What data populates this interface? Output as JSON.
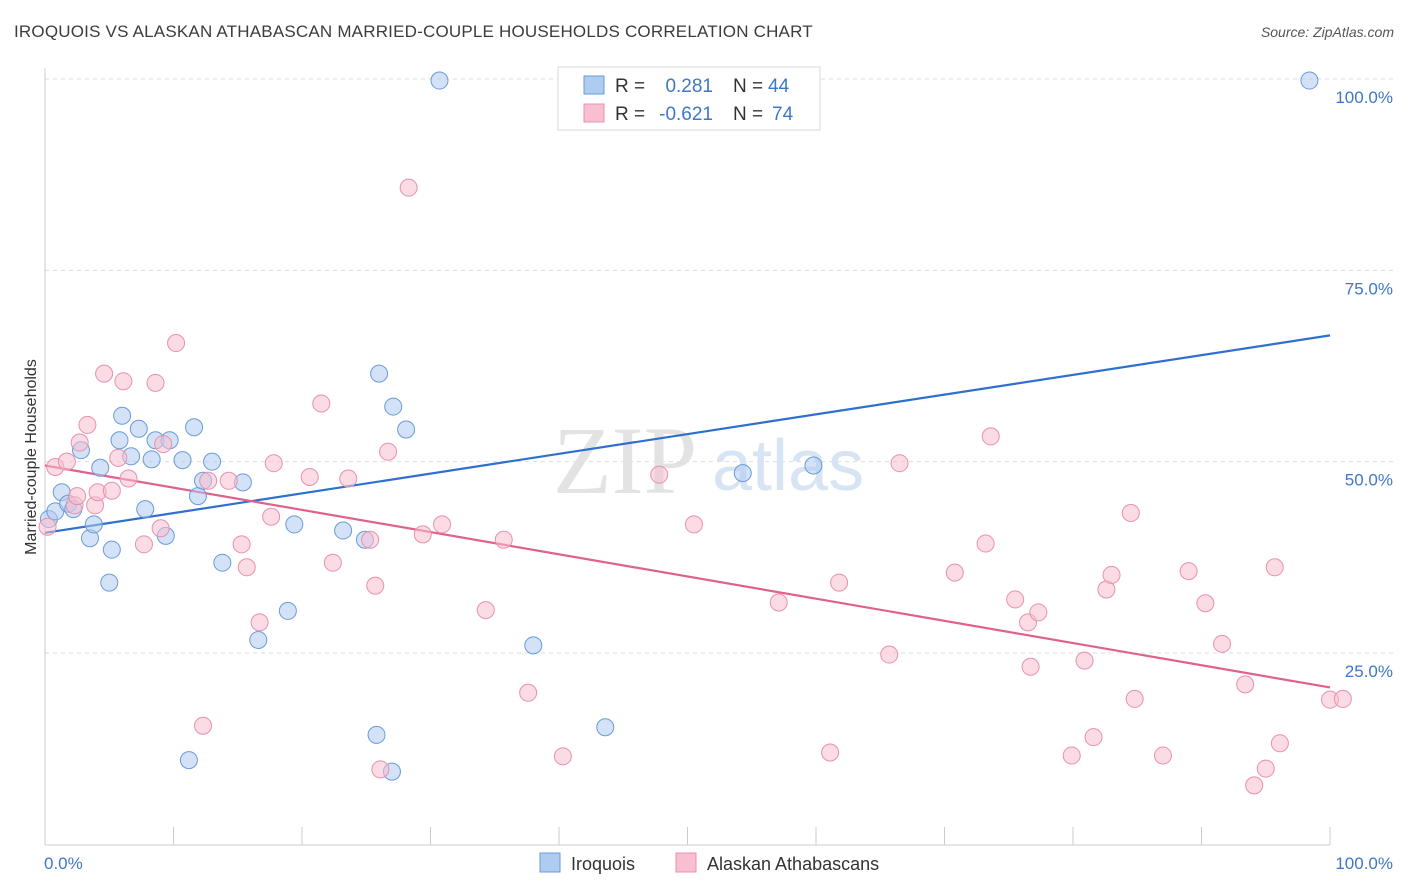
{
  "title": "IROQUOIS VS ALASKAN ATHABASCAN MARRIED-COUPLE HOUSEHOLDS CORRELATION CHART",
  "source": "Source: ZipAtlas.com",
  "watermark": {
    "zip": "ZIP",
    "atlas": "atlas"
  },
  "legend": {
    "rows": [
      {
        "r_label": "R =",
        "r_value": "0.281",
        "n_label": "N =",
        "n_value": "44"
      },
      {
        "r_label": "R =",
        "r_value": "-0.621",
        "n_label": "N =",
        "n_value": "74"
      }
    ]
  },
  "bottom_legend": [
    "Iroquois",
    "Alaskan Athabascans"
  ],
  "colors": {
    "iroquois_fill": "#aecbf0",
    "iroquois_stroke": "#6a9bd8",
    "iroquois_line": "#2e6fd0",
    "athabascan_fill": "#f7bfd0",
    "athabascan_stroke": "#e890ad",
    "athabascan_line": "#e0608e",
    "tick_label": "#3d78c7",
    "grid": "#dddddd"
  },
  "chart_data": {
    "type": "scatter",
    "title": "IROQUOIS VS ALASKAN ATHABASCAN MARRIED-COUPLE HOUSEHOLDS CORRELATION CHART",
    "xlabel": "",
    "ylabel": "Married-couple Households",
    "xlim": [
      0,
      100
    ],
    "ylim": [
      0,
      105
    ],
    "x_tick_labels": [
      "0.0%",
      "100.0%"
    ],
    "y_ticks": [
      25,
      50,
      75,
      100
    ],
    "y_tick_labels": [
      "25.0%",
      "50.0%",
      "75.0%",
      "100.0%"
    ],
    "grid": true,
    "legend_position": "top-center",
    "series": [
      {
        "name": "Iroquois",
        "r": 0.281,
        "n": 44,
        "trend": {
          "x": [
            0,
            100
          ],
          "y": [
            40.7,
            66.5
          ]
        },
        "points": [
          [
            0.3,
            42.5
          ],
          [
            0.8,
            43.5
          ],
          [
            1.3,
            46.0
          ],
          [
            1.8,
            44.5
          ],
          [
            2.2,
            43.8
          ],
          [
            2.8,
            51.5
          ],
          [
            3.5,
            40.0
          ],
          [
            3.8,
            41.8
          ],
          [
            4.3,
            49.2
          ],
          [
            5.2,
            38.5
          ],
          [
            5.0,
            34.2
          ],
          [
            5.8,
            52.8
          ],
          [
            6.0,
            56.0
          ],
          [
            6.7,
            50.7
          ],
          [
            7.3,
            54.3
          ],
          [
            7.8,
            43.8
          ],
          [
            8.3,
            50.3
          ],
          [
            8.6,
            52.8
          ],
          [
            9.4,
            40.3
          ],
          [
            9.7,
            52.8
          ],
          [
            10.7,
            50.2
          ],
          [
            11.6,
            54.5
          ],
          [
            11.9,
            45.5
          ],
          [
            12.3,
            47.5
          ],
          [
            13.0,
            50.0
          ],
          [
            13.8,
            36.8
          ],
          [
            15.4,
            47.3
          ],
          [
            16.6,
            26.7
          ],
          [
            18.9,
            30.5
          ],
          [
            19.4,
            41.8
          ],
          [
            11.2,
            11.0
          ],
          [
            23.2,
            41.0
          ],
          [
            24.9,
            39.8
          ],
          [
            26.0,
            61.5
          ],
          [
            27.1,
            57.2
          ],
          [
            28.1,
            54.2
          ],
          [
            25.8,
            14.3
          ],
          [
            27.0,
            9.5
          ],
          [
            30.7,
            99.8
          ],
          [
            38.0,
            26.0
          ],
          [
            43.6,
            15.3
          ],
          [
            54.3,
            48.5
          ],
          [
            59.8,
            49.5
          ],
          [
            98.4,
            99.8
          ]
        ]
      },
      {
        "name": "Alaskan Athabascans",
        "r": -0.621,
        "n": 74,
        "trend": {
          "x": [
            0,
            100
          ],
          "y": [
            49.5,
            20.5
          ]
        },
        "points": [
          [
            0.2,
            41.5
          ],
          [
            0.8,
            49.3
          ],
          [
            1.7,
            50.0
          ],
          [
            2.3,
            44.3
          ],
          [
            2.5,
            45.5
          ],
          [
            2.7,
            52.5
          ],
          [
            3.3,
            54.8
          ],
          [
            3.9,
            44.3
          ],
          [
            4.1,
            46.0
          ],
          [
            4.6,
            61.5
          ],
          [
            5.2,
            46.2
          ],
          [
            5.7,
            50.5
          ],
          [
            6.1,
            60.5
          ],
          [
            6.5,
            47.8
          ],
          [
            7.7,
            39.2
          ],
          [
            8.6,
            60.3
          ],
          [
            9.0,
            41.3
          ],
          [
            9.2,
            52.3
          ],
          [
            10.2,
            65.5
          ],
          [
            12.3,
            15.5
          ],
          [
            12.7,
            47.5
          ],
          [
            14.3,
            47.5
          ],
          [
            15.3,
            39.2
          ],
          [
            15.7,
            36.2
          ],
          [
            16.7,
            29.0
          ],
          [
            17.6,
            42.8
          ],
          [
            17.8,
            49.8
          ],
          [
            20.6,
            48.0
          ],
          [
            21.5,
            57.6
          ],
          [
            22.4,
            36.8
          ],
          [
            23.6,
            47.8
          ],
          [
            25.3,
            39.8
          ],
          [
            25.7,
            33.8
          ],
          [
            26.1,
            9.8
          ],
          [
            26.7,
            51.3
          ],
          [
            28.3,
            85.8
          ],
          [
            29.4,
            40.5
          ],
          [
            30.9,
            41.8
          ],
          [
            34.3,
            30.6
          ],
          [
            35.7,
            39.8
          ],
          [
            37.6,
            19.8
          ],
          [
            40.3,
            11.5
          ],
          [
            47.8,
            48.3
          ],
          [
            50.5,
            41.8
          ],
          [
            57.1,
            31.6
          ],
          [
            61.1,
            12.0
          ],
          [
            61.8,
            34.2
          ],
          [
            65.7,
            24.8
          ],
          [
            66.5,
            49.8
          ],
          [
            70.8,
            35.5
          ],
          [
            73.2,
            39.3
          ],
          [
            73.6,
            53.3
          ],
          [
            75.5,
            32.0
          ],
          [
            76.5,
            29.0
          ],
          [
            76.7,
            23.2
          ],
          [
            77.3,
            30.3
          ],
          [
            79.9,
            11.6
          ],
          [
            80.9,
            24.0
          ],
          [
            81.6,
            14.0
          ],
          [
            82.6,
            33.3
          ],
          [
            83.0,
            35.2
          ],
          [
            84.5,
            43.3
          ],
          [
            84.8,
            19.0
          ],
          [
            87.0,
            11.6
          ],
          [
            89.0,
            35.7
          ],
          [
            90.3,
            31.5
          ],
          [
            91.6,
            26.2
          ],
          [
            93.4,
            20.9
          ],
          [
            94.1,
            7.7
          ],
          [
            95.0,
            9.9
          ],
          [
            95.7,
            36.2
          ],
          [
            96.1,
            13.2
          ],
          [
            100.0,
            18.9
          ],
          [
            101.0,
            19.0
          ]
        ]
      }
    ]
  }
}
